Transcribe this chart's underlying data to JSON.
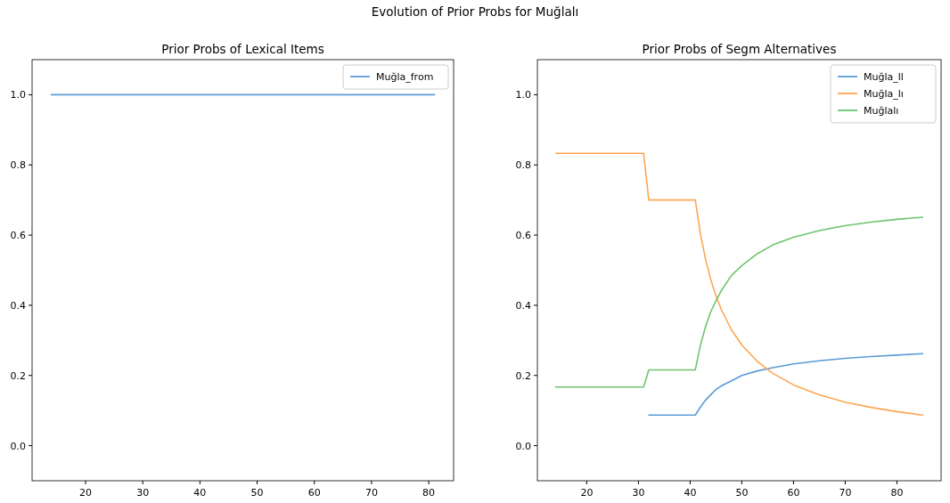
{
  "chart_data": [
    {
      "type": "line",
      "title": "Prior Probs of Lexical Items",
      "x": [
        14,
        81
      ],
      "series": [
        {
          "name": "Muğla_from",
          "color": "#5b9bd5",
          "values": [
            1.0,
            1.0
          ]
        }
      ],
      "xlim": [
        10.65,
        84.35
      ],
      "ylim": [
        -0.1,
        1.1
      ],
      "xticks": [
        20,
        30,
        40,
        50,
        60,
        70,
        80
      ],
      "yticks": [
        {
          "value": 0,
          "label": "0.0"
        },
        {
          "value": 0.2,
          "label": "0.2"
        },
        {
          "value": 0.4,
          "label": "0.4"
        },
        {
          "value": 0.6,
          "label": "0.6"
        },
        {
          "value": 0.8,
          "label": "0.8"
        },
        {
          "value": 1,
          "label": "1.0"
        }
      ],
      "legend": "top right",
      "grid": false
    },
    {
      "type": "line",
      "title": "Prior Probs of Segm Alternatives",
      "x": [
        14,
        31,
        32,
        41,
        42,
        43,
        44,
        45,
        46,
        48,
        50,
        53,
        56,
        60,
        65,
        70,
        75,
        80,
        85
      ],
      "series": [
        {
          "name": "Muğla_ll",
          "color": "#5b9bd5",
          "values": [
            null,
            null,
            0.087,
            0.087,
            0.11,
            0.13,
            0.145,
            0.16,
            0.17,
            0.185,
            0.2,
            0.213,
            0.222,
            0.233,
            0.242,
            0.249,
            0.254,
            0.258,
            0.262
          ]
        },
        {
          "name": "Muğla_lı",
          "color": "#ffa552",
          "values": [
            0.833,
            0.833,
            0.7,
            0.7,
            0.603,
            0.53,
            0.473,
            0.427,
            0.389,
            0.33,
            0.287,
            0.24,
            0.206,
            0.173,
            0.145,
            0.124,
            0.109,
            0.097,
            0.087
          ]
        },
        {
          "name": "Muğlalı",
          "color": "#6fc46f",
          "values": [
            0.167,
            0.167,
            0.216,
            0.216,
            0.287,
            0.34,
            0.382,
            0.413,
            0.441,
            0.485,
            0.513,
            0.547,
            0.572,
            0.594,
            0.613,
            0.627,
            0.637,
            0.645,
            0.651
          ]
        }
      ],
      "xlim": [
        10.45,
        88.55
      ],
      "ylim": [
        -0.1,
        1.1
      ],
      "xticks": [
        20,
        30,
        40,
        50,
        60,
        70,
        80
      ],
      "yticks": [
        {
          "value": 0,
          "label": "0.0"
        },
        {
          "value": 0.2,
          "label": "0.2"
        },
        {
          "value": 0.4,
          "label": "0.4"
        },
        {
          "value": 0.6,
          "label": "0.6"
        },
        {
          "value": 0.8,
          "label": "0.8"
        },
        {
          "value": 1,
          "label": "1.0"
        }
      ],
      "legend": "top right",
      "grid": false,
      "annotations": [
        "Evolution of Prior Probs for Muğlalı"
      ]
    }
  ]
}
